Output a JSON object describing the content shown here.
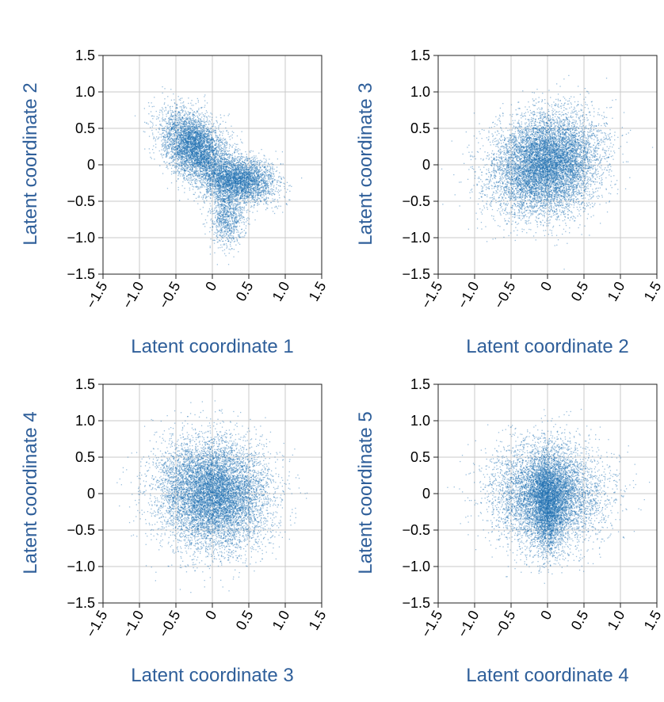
{
  "figure": {
    "marker_color": "#1f6fb2",
    "axis_title_color": "#2f5f9a"
  },
  "chart_data": [
    {
      "type": "scatter",
      "title": "",
      "xlabel": "Latent coordinate 1",
      "ylabel": "Latent coordinate 2",
      "xlim": [
        -1.5,
        1.5
      ],
      "ylim": [
        -1.5,
        1.5
      ],
      "xticks": [
        -1.5,
        -1.0,
        -0.5,
        0,
        0.5,
        1.0,
        1.5
      ],
      "xtick_labels": [
        "−1.5",
        "−1.0",
        "−0.5",
        "0",
        "0.5",
        "1.0",
        "1.5"
      ],
      "yticks": [
        -1.5,
        -1.0,
        -0.5,
        0,
        0.5,
        1.0,
        1.5
      ],
      "ytick_labels": [
        "−1.5",
        "−1.0",
        "−0.5",
        "0",
        "0.5",
        "1.0",
        "1.5"
      ],
      "grid": true,
      "distribution": {
        "n_points": 9000,
        "clusters": [
          {
            "weight": 0.55,
            "mean": [
              -0.25,
              0.25
            ],
            "std": [
              0.22,
              0.24
            ],
            "corr": -0.35
          },
          {
            "weight": 0.45,
            "mean": [
              0.35,
              -0.2
            ],
            "std": [
              0.25,
              0.16
            ],
            "corr": -0.15
          },
          {
            "weight": 0.12,
            "mean": [
              0.2,
              -0.7
            ],
            "std": [
              0.12,
              0.2
            ],
            "corr": 0.0
          }
        ]
      }
    },
    {
      "type": "scatter",
      "title": "",
      "xlabel": "Latent coordinate 2",
      "ylabel": "Latent coordinate 3",
      "xlim": [
        -1.5,
        1.5
      ],
      "ylim": [
        -1.5,
        1.5
      ],
      "xticks": [
        -1.5,
        -1.0,
        -0.5,
        0,
        0.5,
        1.0,
        1.5
      ],
      "xtick_labels": [
        "−1.5",
        "−1.0",
        "−0.5",
        "0",
        "0.5",
        "1.0",
        "1.5"
      ],
      "yticks": [
        -1.5,
        -1.0,
        -0.5,
        0,
        0.5,
        1.0,
        1.5
      ],
      "ytick_labels": [
        "−1.5",
        "−1.0",
        "−0.5",
        "0",
        "0.5",
        "1.0",
        "1.5"
      ],
      "grid": true,
      "distribution": {
        "n_points": 9000,
        "clusters": [
          {
            "weight": 1.0,
            "mean": [
              -0.02,
              0.02
            ],
            "std": [
              0.36,
              0.34
            ],
            "corr": 0.15
          }
        ]
      }
    },
    {
      "type": "scatter",
      "title": "",
      "xlabel": "Latent coordinate 3",
      "ylabel": "Latent coordinate 4",
      "xlim": [
        -1.5,
        1.5
      ],
      "ylim": [
        -1.5,
        1.5
      ],
      "xticks": [
        -1.5,
        -1.0,
        -0.5,
        0,
        0.5,
        1.0,
        1.5
      ],
      "xtick_labels": [
        "−1.5",
        "−1.0",
        "−0.5",
        "0",
        "0.5",
        "1.0",
        "1.5"
      ],
      "yticks": [
        -1.5,
        -1.0,
        -0.5,
        0,
        0.5,
        1.0,
        1.5
      ],
      "ytick_labels": [
        "−1.5",
        "−1.0",
        "−0.5",
        "0",
        "0.5",
        "1.0",
        "1.5"
      ],
      "grid": true,
      "distribution": {
        "n_points": 9000,
        "clusters": [
          {
            "weight": 1.0,
            "mean": [
              0.0,
              0.0
            ],
            "std": [
              0.37,
              0.37
            ],
            "corr": -0.05
          }
        ]
      }
    },
    {
      "type": "scatter",
      "title": "",
      "xlabel": "Latent coordinate 4",
      "ylabel": "Latent coordinate 5",
      "xlim": [
        -1.5,
        1.5
      ],
      "ylim": [
        -1.5,
        1.5
      ],
      "xticks": [
        -1.5,
        -1.0,
        -0.5,
        0,
        0.5,
        1.0,
        1.5
      ],
      "xtick_labels": [
        "−1.5",
        "−1.0",
        "−0.5",
        "0",
        "0.5",
        "1.0",
        "1.5"
      ],
      "yticks": [
        -1.5,
        -1.0,
        -0.5,
        0,
        0.5,
        1.0,
        1.5
      ],
      "ytick_labels": [
        "−1.5",
        "−1.0",
        "−0.5",
        "0",
        "0.5",
        "1.0",
        "1.5"
      ],
      "grid": true,
      "distribution": {
        "n_points": 9000,
        "clusters": [
          {
            "weight": 0.7,
            "mean": [
              0.0,
              0.0
            ],
            "std": [
              0.38,
              0.34
            ],
            "corr": 0.0
          },
          {
            "weight": 0.3,
            "mean": [
              0.0,
              -0.15
            ],
            "std": [
              0.12,
              0.33
            ],
            "corr": 0.0
          }
        ]
      }
    }
  ]
}
